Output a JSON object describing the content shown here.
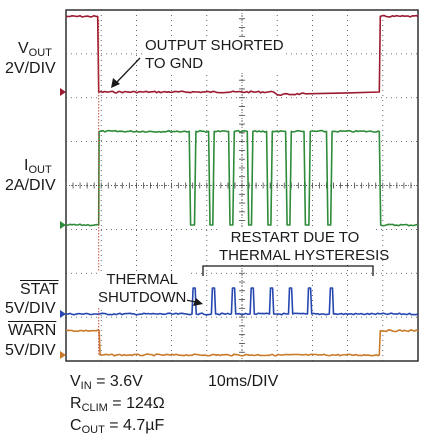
{
  "chart_data": {
    "type": "line",
    "timebase": "10ms/DIV",
    "x_range_ms": [
      0,
      100
    ],
    "channels": [
      {
        "id": "vout",
        "label_main": "V",
        "label_sub": "OUT",
        "scale": "2V/DIV",
        "color": "#9b1b30",
        "points_ms_div": [
          [
            0,
            4.2
          ],
          [
            9,
            4.2
          ],
          [
            9.3,
            0.0
          ],
          [
            59,
            0.0
          ],
          [
            60,
            -0.15
          ],
          [
            68,
            -0.1
          ],
          [
            80,
            -0.05
          ],
          [
            89,
            0.0
          ],
          [
            89.3,
            4.2
          ],
          [
            100,
            4.2
          ]
        ]
      },
      {
        "id": "iout",
        "label_main": "I",
        "label_sub": "OUT",
        "scale": "2A/DIV",
        "color": "#2e8b3a",
        "points_ms_div": [
          [
            0,
            0
          ],
          [
            9.3,
            0
          ],
          [
            9.4,
            2.6
          ],
          [
            35,
            2.6
          ],
          [
            35.4,
            0
          ],
          [
            36.5,
            0
          ],
          [
            36.9,
            2.6
          ],
          [
            40.5,
            2.6
          ],
          [
            40.9,
            0
          ],
          [
            41.7,
            0
          ],
          [
            42.1,
            2.6
          ],
          [
            46.2,
            2.6
          ],
          [
            46.6,
            0
          ],
          [
            47.4,
            0
          ],
          [
            47.8,
            2.6
          ],
          [
            51.5,
            2.6
          ],
          [
            51.9,
            0
          ],
          [
            52.7,
            0
          ],
          [
            53.1,
            2.6
          ],
          [
            57,
            2.6
          ],
          [
            57.4,
            0
          ],
          [
            58.2,
            0
          ],
          [
            58.6,
            2.6
          ],
          [
            62.4,
            2.6
          ],
          [
            62.8,
            0
          ],
          [
            63.6,
            0
          ],
          [
            64,
            2.6
          ],
          [
            67.6,
            2.6
          ],
          [
            68,
            0
          ],
          [
            69,
            0
          ],
          [
            69.4,
            2.6
          ],
          [
            74,
            2.6
          ],
          [
            74.4,
            0
          ],
          [
            75.2,
            0
          ],
          [
            75.6,
            2.6
          ],
          [
            89,
            2.6
          ],
          [
            89.4,
            0
          ],
          [
            100,
            0
          ]
        ]
      },
      {
        "id": "stat",
        "label_main": "STAT",
        "label_sub": "",
        "overline": true,
        "scale": "5V/DIV",
        "color": "#2747b0",
        "points_ms_div": [
          [
            0,
            0
          ],
          [
            35.8,
            0
          ],
          [
            36.1,
            1.0
          ],
          [
            36.7,
            1.0
          ],
          [
            37,
            0
          ],
          [
            41.3,
            0
          ],
          [
            41.6,
            1.0
          ],
          [
            42.2,
            1.0
          ],
          [
            42.5,
            0
          ],
          [
            47,
            0
          ],
          [
            47.3,
            1.0
          ],
          [
            47.9,
            1.0
          ],
          [
            48.2,
            0
          ],
          [
            52.3,
            0
          ],
          [
            52.6,
            1.0
          ],
          [
            53.2,
            1.0
          ],
          [
            53.5,
            0
          ],
          [
            57.8,
            0
          ],
          [
            58.1,
            1.0
          ],
          [
            58.7,
            1.0
          ],
          [
            59,
            0
          ],
          [
            63.2,
            0
          ],
          [
            63.5,
            1.0
          ],
          [
            64.1,
            1.0
          ],
          [
            64.4,
            0
          ],
          [
            68.6,
            0
          ],
          [
            68.9,
            1.0
          ],
          [
            69.5,
            1.0
          ],
          [
            69.8,
            0
          ],
          [
            74.8,
            0
          ],
          [
            75.1,
            1.0
          ],
          [
            75.7,
            1.0
          ],
          [
            76,
            0
          ],
          [
            100,
            0
          ]
        ]
      },
      {
        "id": "warn",
        "label_main": "WARN",
        "label_sub": "",
        "overline": true,
        "scale": "5V/DIV",
        "color": "#c97a2a",
        "points_ms_div": [
          [
            0,
            0.9
          ],
          [
            9.4,
            0.9
          ],
          [
            9.7,
            0
          ],
          [
            89,
            0
          ],
          [
            89.3,
            0.9
          ],
          [
            100,
            0.9
          ]
        ]
      }
    ],
    "annotations": [
      {
        "text": [
          "OUTPUT SHORTED",
          "TO GND"
        ]
      },
      {
        "text": [
          "RESTART DUE TO",
          "THERMAL HYSTERESIS"
        ]
      },
      {
        "text": [
          "THERMAL",
          "SHUTDOWN"
        ]
      }
    ],
    "conditions": [
      {
        "main": "V",
        "sub": "IN",
        "value": " = 3.6V"
      },
      {
        "main": "R",
        "sub": "CLIM",
        "value": " = 124Ω"
      },
      {
        "main": "C",
        "sub": "OUT",
        "value": " = 4.7µF"
      }
    ],
    "grid": true
  }
}
